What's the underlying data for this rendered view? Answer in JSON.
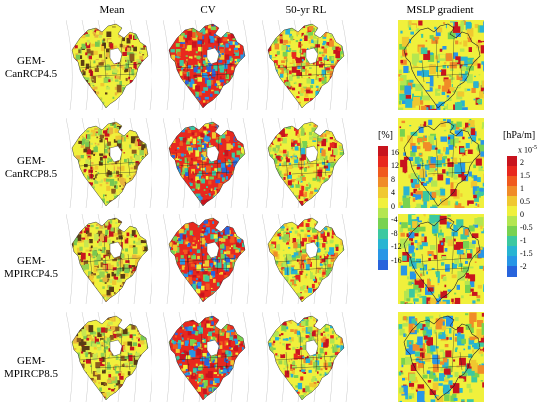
{
  "columns": [
    "Mean",
    "CV",
    "50-yr RL",
    "MSLP gradient"
  ],
  "rows": [
    {
      "line1": "GEM-",
      "line2": "CanRCP4.5"
    },
    {
      "line1": "GEM-",
      "line2": "CanRCP8.5"
    },
    {
      "line1": "GEM-",
      "line2": "MPIRCP4.5"
    },
    {
      "line1": "GEM-",
      "line2": "MPIRCP8.5"
    }
  ],
  "legend_percent": {
    "unit": "[%]",
    "ticks": [
      "16",
      "12",
      "8",
      "4",
      "0",
      "-4",
      "-8",
      "-12",
      "-16"
    ],
    "colors": [
      "#c8141e",
      "#e8281e",
      "#f05a1e",
      "#f08c28",
      "#f0c830",
      "#f0f03c",
      "#b4e650",
      "#78d250",
      "#3cc8a0",
      "#28b4d2",
      "#2896e6",
      "#2864dc"
    ]
  },
  "legend_gradient": {
    "unit": "[hPa/m]",
    "multiplier_base": "x 10",
    "multiplier_exp": "-5",
    "ticks": [
      "2",
      "1.5",
      "1",
      "0.5",
      "0",
      "-0.5",
      "-1",
      "-1.5",
      "-2"
    ],
    "colors": [
      "#c8141e",
      "#e8281e",
      "#f05a1e",
      "#f08c28",
      "#f0c830",
      "#f0f03c",
      "#b4e650",
      "#78d250",
      "#3cc8a0",
      "#28b4d2",
      "#2896e6",
      "#2864dc"
    ]
  },
  "palette_base": {
    "mean": [
      "#f0f03c",
      "#c8e650",
      "#96d250",
      "#f0c830",
      "#78c850",
      "#e8b43c",
      "#8c5a1e",
      "#5a3c14",
      "#c8141e"
    ],
    "cv": [
      "#e8281e",
      "#c8141e",
      "#2864dc",
      "#2896e6",
      "#f0c830",
      "#78d250",
      "#3cc8a0",
      "#f05a1e",
      "#f0f03c"
    ],
    "rl": [
      "#f0f03c",
      "#b4e650",
      "#f0c830",
      "#e8281e",
      "#78d250",
      "#f08c28",
      "#28b4d2",
      "#c8141e",
      "#96d250"
    ],
    "grad": [
      "#f0f03c",
      "#b4e650",
      "#3cc8a0",
      "#28b4d2",
      "#f0c830",
      "#78d250",
      "#2896e6",
      "#f08c28",
      "#c8141e"
    ]
  }
}
